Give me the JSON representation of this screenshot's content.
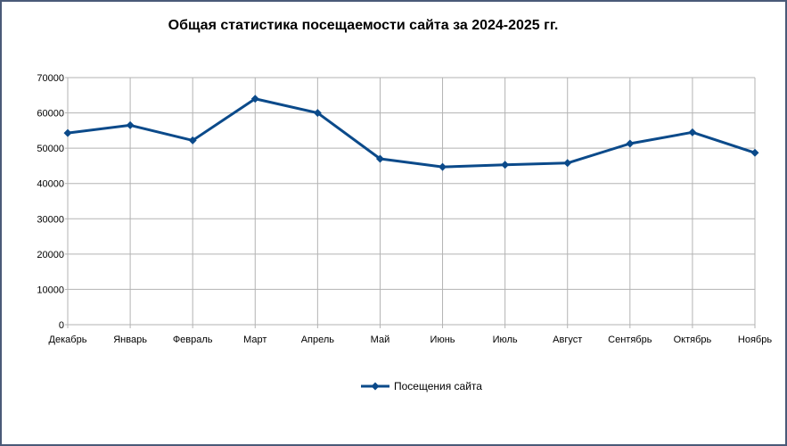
{
  "chart_data": {
    "type": "line",
    "title": "Общая статистика посещаемости сайта за 2024-2025 гг.",
    "categories": [
      "Декабрь",
      "Январь",
      "Февраль",
      "Март",
      "Апрель",
      "Май",
      "Июнь",
      "Июль",
      "Август",
      "Сентябрь",
      "Октябрь",
      "Ноябрь"
    ],
    "series": [
      {
        "name": "Посещения сайта",
        "color": "#0b4a8a",
        "marker": "diamond",
        "values": [
          54300,
          56500,
          52200,
          64000,
          60000,
          47000,
          44700,
          45300,
          45800,
          51300,
          54500,
          48700
        ]
      }
    ],
    "yticks": [
      "0",
      "10000",
      "20000",
      "30000",
      "40000",
      "50000",
      "60000",
      "70000"
    ],
    "ylim": [
      0,
      70000
    ],
    "grid": true,
    "legend_position": "bottom"
  }
}
